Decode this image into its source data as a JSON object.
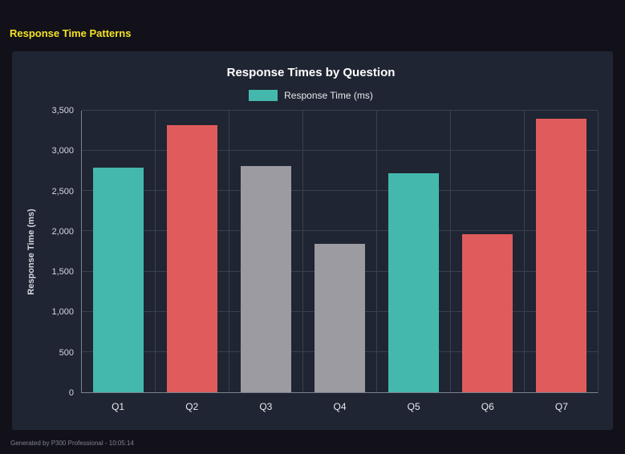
{
  "page": {
    "title": "Response Time Patterns"
  },
  "footer": {
    "text": "Generated by P300 Professional - 10:05:14"
  },
  "theme": {
    "title_color": "#f4e125",
    "teal": "#45b8ad",
    "red": "#e05c5c",
    "gray": "#9b9ba1",
    "panel_bg": "#1f2532",
    "page_bg": "#121119"
  },
  "chart_data": {
    "type": "bar",
    "title": "Response Times by Question",
    "legend": "Response Time (ms)",
    "legend_color": "#45b8ad",
    "legend_position": "top",
    "categories": [
      "Q1",
      "Q2",
      "Q3",
      "Q4",
      "Q5",
      "Q6",
      "Q7"
    ],
    "values": [
      2790,
      3320,
      2810,
      1840,
      2720,
      1960,
      3400
    ],
    "colors": [
      "#45b8ad",
      "#e05c5c",
      "#9b9ba1",
      "#9b9ba1",
      "#45b8ad",
      "#e05c5c",
      "#e05c5c"
    ],
    "xlabel": "",
    "ylabel": "Response Time (ms)",
    "ylim": [
      0,
      3500
    ],
    "grid": true,
    "yticks": [
      {
        "value": 0,
        "label": "0"
      },
      {
        "value": 500,
        "label": "500"
      },
      {
        "value": 1000,
        "label": "1,000"
      },
      {
        "value": 1500,
        "label": "1,500"
      },
      {
        "value": 2000,
        "label": "2,000"
      },
      {
        "value": 2500,
        "label": "2,500"
      },
      {
        "value": 3000,
        "label": "3,000"
      },
      {
        "value": 3500,
        "label": "3,500"
      }
    ]
  }
}
